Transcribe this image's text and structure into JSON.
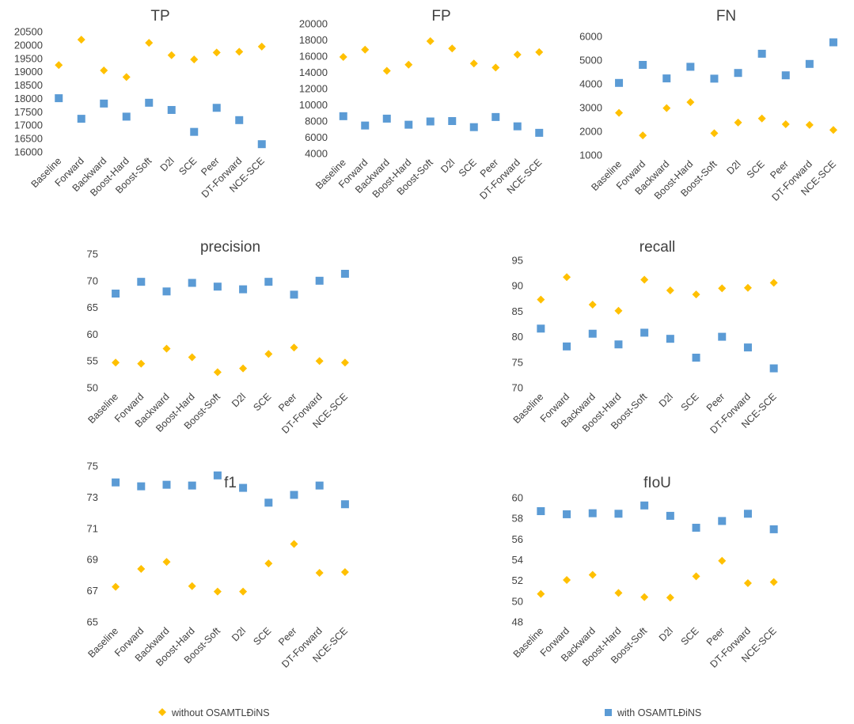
{
  "colors": {
    "without": "#FFC000",
    "with": "#5B9BD5",
    "text": "#404040"
  },
  "legend": {
    "without_label": "without OSAMTLĐiNS",
    "with_label": "with OSAMTLĐiNS"
  },
  "chart_data": [
    {
      "type": "scatter",
      "title": "TP",
      "categories": [
        "Baseline",
        "Forward",
        "Backward",
        "Boost-Hard",
        "Boost-Soft",
        "D2l",
        "SCE",
        "Peer",
        "DT-Forward",
        "NCE-SCE"
      ],
      "yticks": [
        16000,
        16500,
        17000,
        17500,
        18000,
        18500,
        19000,
        19500,
        20000,
        20500
      ],
      "ylim": [
        16000,
        20500
      ],
      "series": [
        {
          "name": "without OSAMTLĐiNS",
          "marker": "diamond",
          "values": [
            19250,
            20200,
            19050,
            18800,
            20080,
            19620,
            19460,
            19720,
            19750,
            19940
          ]
        },
        {
          "name": "with OSAMTLĐiNS",
          "marker": "square",
          "values": [
            18010,
            17240,
            17810,
            17320,
            17840,
            17570,
            16750,
            17650,
            17190,
            16290
          ]
        }
      ]
    },
    {
      "type": "scatter",
      "title": "FP",
      "categories": [
        "Baseline",
        "Forward",
        "Backward",
        "Boost-Hard",
        "Boost-Soft",
        "D2l",
        "SCE",
        "Peer",
        "DT-Forward",
        "NCE-SCE"
      ],
      "yticks": [
        4000,
        6000,
        8000,
        10000,
        12000,
        14000,
        16000,
        18000,
        20000
      ],
      "ylim": [
        4000,
        20000
      ],
      "series": [
        {
          "name": "without OSAMTLĐiNS",
          "marker": "diamond",
          "values": [
            15900,
            16800,
            14200,
            14950,
            17850,
            16950,
            15100,
            14600,
            16200,
            16500
          ]
        },
        {
          "name": "with OSAMTLĐiNS",
          "marker": "square",
          "values": [
            8600,
            7450,
            8300,
            7550,
            7950,
            8000,
            7250,
            8500,
            7350,
            6550
          ]
        }
      ]
    },
    {
      "type": "scatter",
      "title": "FN",
      "categories": [
        "Baseline",
        "Forward",
        "Backward",
        "Boost-Hard",
        "Boost-Soft",
        "D2l",
        "SCE",
        "Peer",
        "DT-Forward",
        "NCE-SCE"
      ],
      "yticks": [
        1000,
        2000,
        3000,
        4000,
        5000,
        6000
      ],
      "ylim": [
        1000,
        6000
      ],
      "series": [
        {
          "name": "without OSAMTLĐiNS",
          "marker": "diamond",
          "values": [
            2780,
            1830,
            2980,
            3230,
            1920,
            2370,
            2540,
            2300,
            2270,
            2060
          ]
        },
        {
          "name": "with OSAMTLĐiNS",
          "marker": "square",
          "values": [
            4040,
            4800,
            4230,
            4720,
            4220,
            4460,
            5270,
            4360,
            4840,
            5750
          ]
        }
      ]
    },
    {
      "type": "scatter",
      "title": "precision",
      "categories": [
        "Baseline",
        "Forward",
        "Backward",
        "Boost-Hard",
        "Boost-Soft",
        "D2l",
        "SCE",
        "Peer",
        "DT-Forward",
        "NCE-SCE"
      ],
      "yticks": [
        50,
        55,
        60,
        65,
        70,
        75
      ],
      "ylim": [
        50,
        75
      ],
      "series": [
        {
          "name": "without OSAMTLĐiNS",
          "marker": "diamond",
          "values": [
            54.7,
            54.5,
            57.3,
            55.7,
            52.9,
            53.6,
            56.3,
            57.5,
            55.0,
            54.7
          ]
        },
        {
          "name": "with OSAMTLĐiNS",
          "marker": "square",
          "values": [
            67.6,
            69.8,
            68.0,
            69.6,
            68.9,
            68.4,
            69.8,
            67.4,
            70.0,
            71.3
          ]
        }
      ]
    },
    {
      "type": "scatter",
      "title": "recall",
      "categories": [
        "Baseline",
        "Forward",
        "Backward",
        "Boost-Hard",
        "Boost-Soft",
        "D2l",
        "SCE",
        "Peer",
        "DT-Forward",
        "NCE-SCE"
      ],
      "yticks": [
        70,
        75,
        80,
        85,
        90,
        95
      ],
      "ylim": [
        70,
        95
      ],
      "series": [
        {
          "name": "without OSAMTLĐiNS",
          "marker": "diamond",
          "values": [
            87.3,
            91.7,
            86.3,
            85.1,
            91.2,
            89.1,
            88.3,
            89.5,
            89.6,
            90.6
          ]
        },
        {
          "name": "with OSAMTLĐiNS",
          "marker": "square",
          "values": [
            81.6,
            78.1,
            80.6,
            78.5,
            80.8,
            79.6,
            75.9,
            80.0,
            77.9,
            73.8
          ]
        }
      ]
    },
    {
      "type": "scatter",
      "title": "f1",
      "categories": [
        "Baseline",
        "Forward",
        "Backward",
        "Boost-Hard",
        "Boost-Soft",
        "D2l",
        "SCE",
        "Peer",
        "DT-Forward",
        "NCE-SCE"
      ],
      "yticks": [
        65,
        67,
        69,
        71,
        73,
        75
      ],
      "ylim": [
        65,
        75
      ],
      "series": [
        {
          "name": "without OSAMTLĐiNS",
          "marker": "diamond",
          "values": [
            67.25,
            68.4,
            68.85,
            67.3,
            66.95,
            66.95,
            68.75,
            70.0,
            68.15,
            68.2
          ]
        },
        {
          "name": "with OSAMTLĐiNS",
          "marker": "square",
          "values": [
            73.95,
            73.7,
            73.8,
            73.75,
            74.4,
            73.6,
            72.65,
            73.15,
            73.75,
            72.55
          ]
        }
      ]
    },
    {
      "type": "scatter",
      "title": "fIoU",
      "categories": [
        "Baseline",
        "Forward",
        "Backward",
        "Boost-Hard",
        "Boost-Soft",
        "D2l",
        "SCE",
        "Peer",
        "DT-Forward",
        "NCE-SCE"
      ],
      "yticks": [
        48,
        50,
        52,
        54,
        56,
        58,
        60
      ],
      "ylim": [
        48,
        60
      ],
      "series": [
        {
          "name": "without OSAMTLĐiNS",
          "marker": "diamond",
          "values": [
            50.7,
            52.05,
            52.55,
            50.8,
            50.4,
            50.35,
            52.4,
            53.9,
            51.75,
            51.85
          ]
        },
        {
          "name": "with OSAMTLĐiNS",
          "marker": "square",
          "values": [
            58.7,
            58.4,
            58.5,
            58.45,
            59.25,
            58.25,
            57.1,
            57.75,
            58.45,
            56.95
          ]
        }
      ]
    }
  ]
}
